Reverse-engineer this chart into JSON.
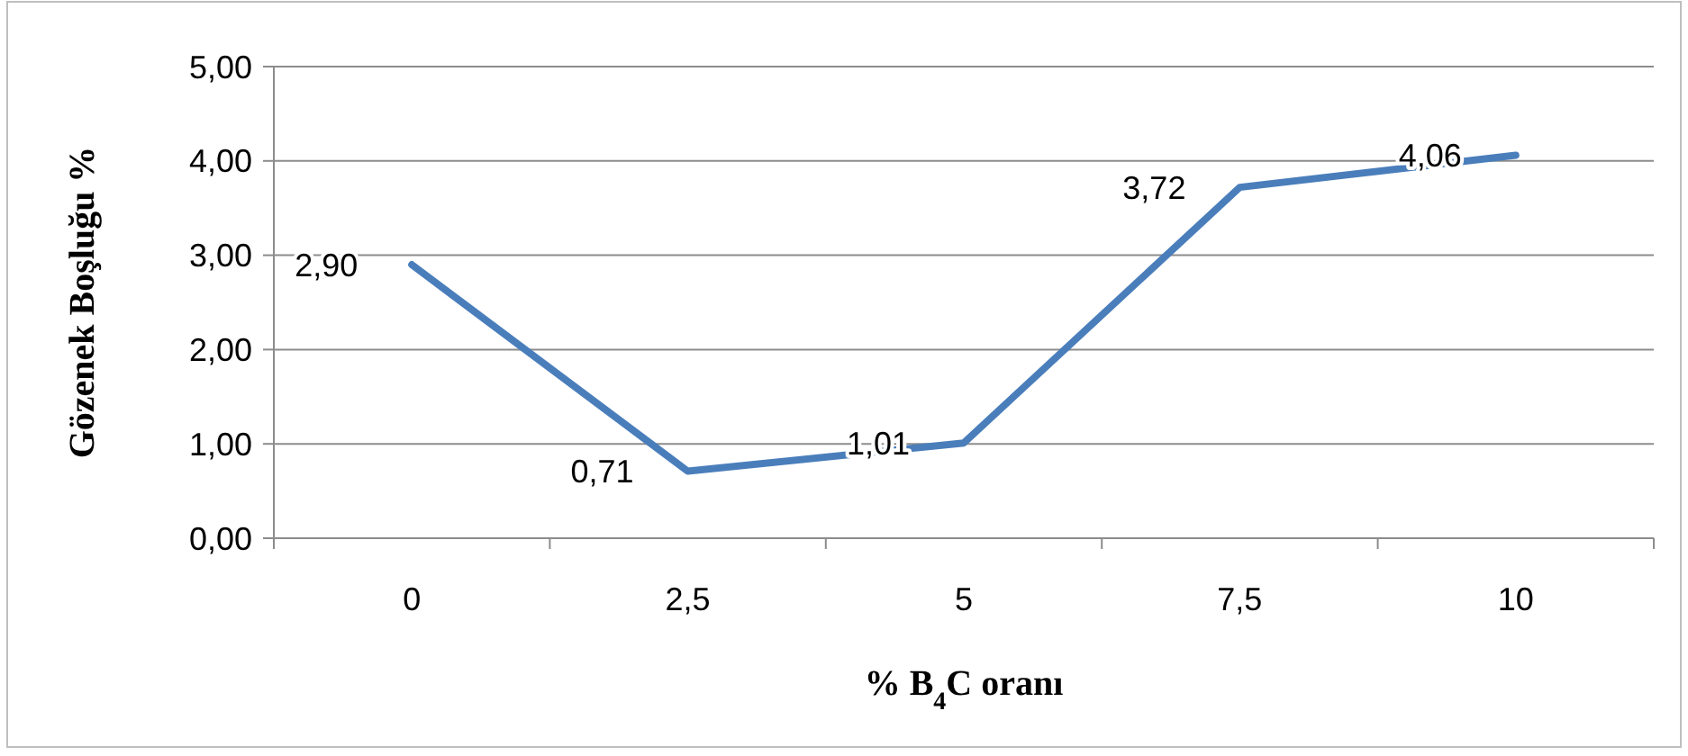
{
  "chart_data": {
    "type": "line",
    "xlabel": "% B$_{4}$C oranı",
    "ylabel": "Gözenek Boşluğu %",
    "categories": [
      "0",
      "2,5",
      "5",
      "7,5",
      "10"
    ],
    "series": [
      {
        "color": "#4a7ebb",
        "values": [
          2.9,
          0.71,
          1.01,
          3.72,
          4.06
        ],
        "value_labels": [
          "2,90",
          "0,71",
          "1,01",
          "3,72",
          "4,06"
        ]
      }
    ],
    "ylim": [
      0,
      5
    ],
    "yticks": [
      {
        "value": 0,
        "label": "0,00"
      },
      {
        "value": 1,
        "label": "1,00"
      },
      {
        "value": 2,
        "label": "2,00"
      },
      {
        "value": 3,
        "label": "3,00"
      },
      {
        "value": 4,
        "label": "4,00"
      },
      {
        "value": 5,
        "label": "5,00"
      }
    ],
    "grid": "y",
    "marker": "none",
    "line_style": "solid"
  }
}
